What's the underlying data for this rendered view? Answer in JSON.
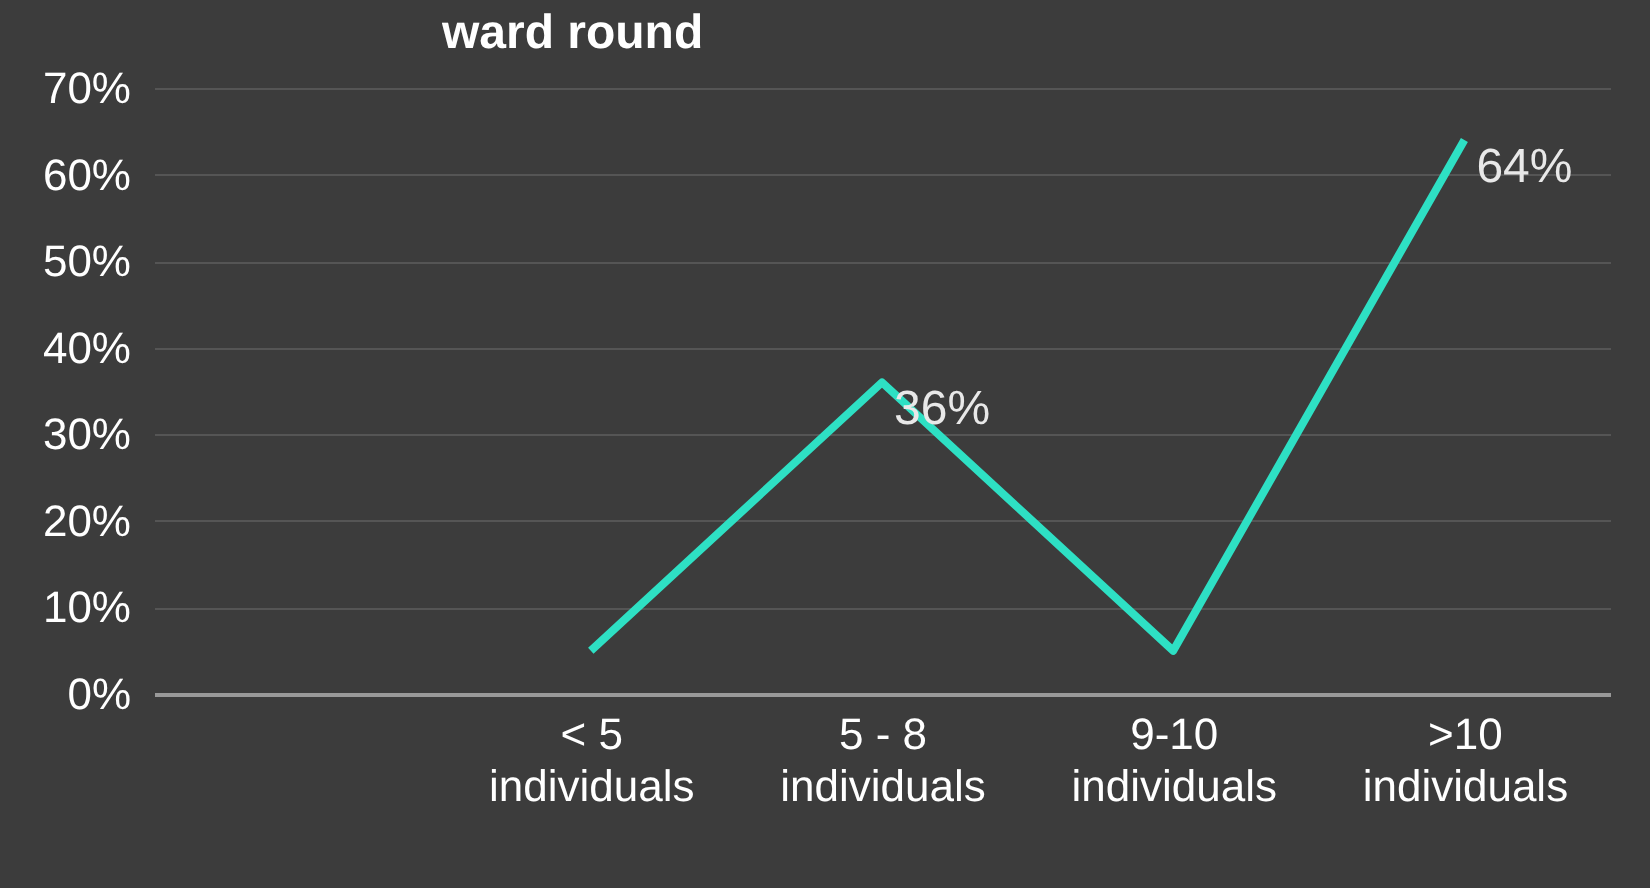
{
  "chart_data": {
    "type": "line",
    "title": "ward round",
    "categories": [
      null,
      "< 5\nindividuals",
      "5 - 8\nindividuals",
      "9-10\nindividuals",
      ">10\nindividuals"
    ],
    "series": [
      {
        "color": "#2ee0c4",
        "values": [
          null,
          5,
          36,
          5,
          64
        ],
        "value_labels": [
          null,
          null,
          "36%",
          null,
          "64%"
        ]
      }
    ],
    "ylim": [
      0,
      70
    ],
    "yticks": [
      {
        "value": 0,
        "label": "0%"
      },
      {
        "value": 10,
        "label": "10%"
      },
      {
        "value": 20,
        "label": "20%"
      },
      {
        "value": 30,
        "label": "30%"
      },
      {
        "value": 40,
        "label": "40%"
      },
      {
        "value": 50,
        "label": "50%"
      },
      {
        "value": 60,
        "label": "60%"
      },
      {
        "value": 70,
        "label": "70%"
      }
    ],
    "grid": "y",
    "marker": "none",
    "line_style": "solid"
  }
}
